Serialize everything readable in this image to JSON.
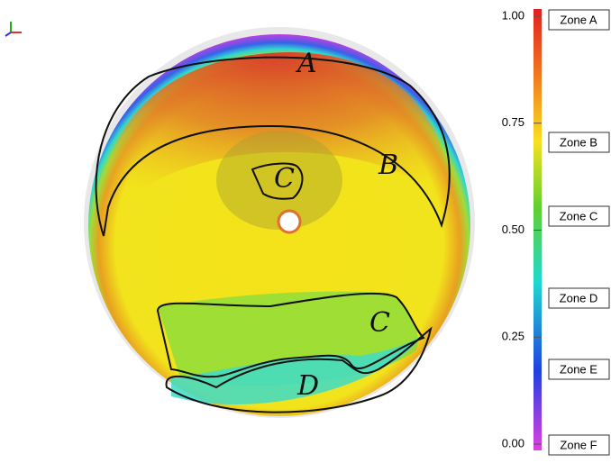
{
  "colorbar": {
    "ticks": [
      {
        "value": 1,
        "label": "1.00"
      },
      {
        "value": 0.75,
        "label": "0.75"
      },
      {
        "value": 0.5,
        "label": "0.50"
      },
      {
        "value": 0.25,
        "label": "0.25"
      },
      {
        "value": 0,
        "label": "0.00"
      }
    ],
    "zones": [
      "Zone A",
      "Zone B",
      "Zone C",
      "Zone D",
      "Zone E",
      "Zone F"
    ]
  },
  "annotations": [
    "A",
    "B",
    "C",
    "C",
    "D"
  ]
}
